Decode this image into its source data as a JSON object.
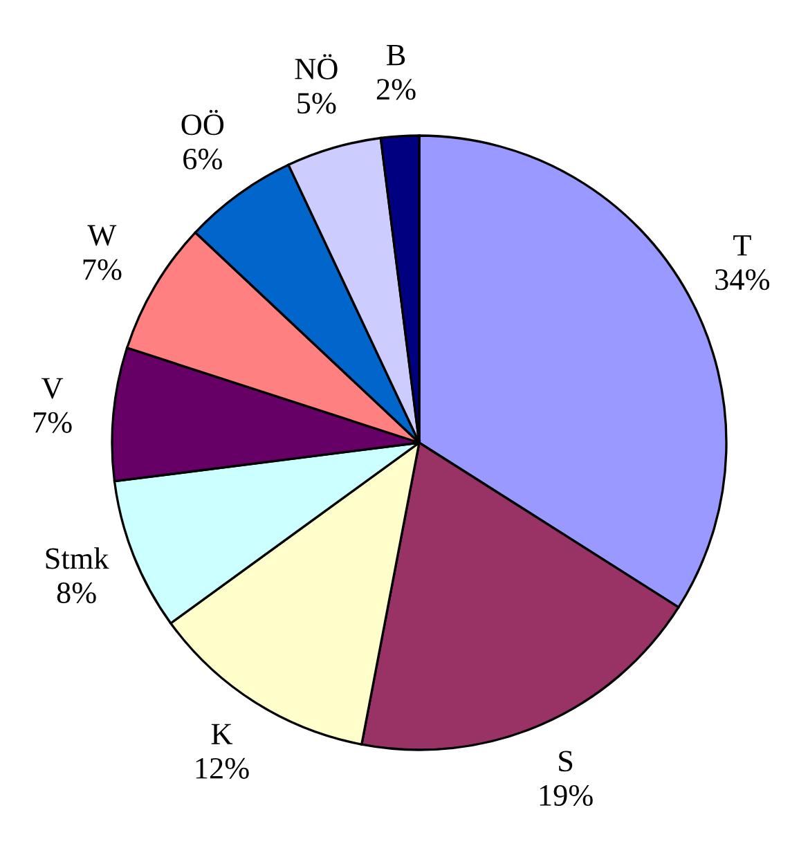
{
  "chart_data": {
    "type": "pie",
    "categories": [
      "T",
      "S",
      "K",
      "Stmk",
      "V",
      "W",
      "OÖ",
      "NÖ",
      "B"
    ],
    "values": [
      34,
      19,
      12,
      8,
      7,
      7,
      6,
      5,
      2
    ],
    "value_labels": [
      "34%",
      "19%",
      "12%",
      "8%",
      "7%",
      "7%",
      "6%",
      "5%",
      "2%"
    ],
    "colors": [
      "#9999ff",
      "#993366",
      "#ffffcc",
      "#ccffff",
      "#660066",
      "#ff8080",
      "#0066cc",
      "#ccccff",
      "#000080"
    ],
    "legend": false
  }
}
